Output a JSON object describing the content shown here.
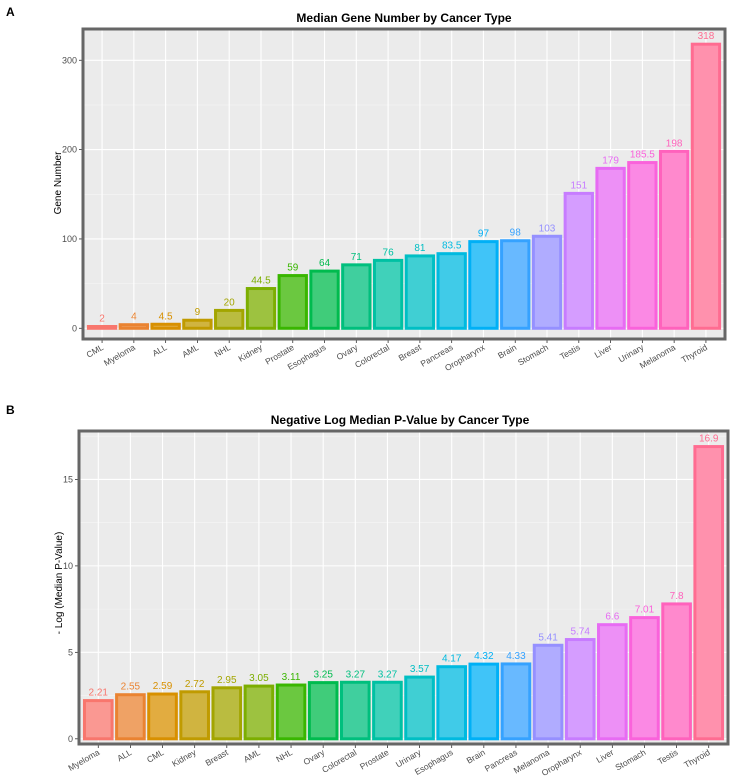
{
  "chart_data": [
    {
      "panel_label": "A",
      "type": "bar",
      "title": "Median Gene Number by Cancer Type",
      "xlabel": "",
      "ylabel": "Gene Number",
      "ylim": [
        -12,
        335
      ],
      "yticks": [
        0,
        100,
        200,
        300
      ],
      "grid": true,
      "legend": "none",
      "categories": [
        "CML",
        "Myeloma",
        "ALL",
        "AML",
        "NHL",
        "Kidney",
        "Prostate",
        "Esophagus",
        "Ovary",
        "Colorectal",
        "Breast",
        "Pancreas",
        "Oropharynx",
        "Brain",
        "Stomach",
        "Testis",
        "Liver",
        "Urinary",
        "Melanoma",
        "Thyroid"
      ],
      "values": [
        2,
        4,
        4.5,
        9,
        20,
        44.5,
        59,
        64,
        71,
        76,
        81,
        83.5,
        97,
        98,
        103,
        151,
        179,
        185.5,
        198,
        318
      ],
      "value_labels": [
        "2",
        "4",
        "4.5",
        "9",
        "20",
        "44.5",
        "59",
        "64",
        "71",
        "76",
        "81",
        "83.5",
        "97",
        "98",
        "103",
        "151",
        "179",
        "185.5",
        "198",
        "318"
      ],
      "colors": [
        "#F8766D",
        "#EA8331",
        "#D89000",
        "#C09B00",
        "#A3A500",
        "#7CAE00",
        "#39B600",
        "#00BB4E",
        "#00BF7D",
        "#00C1A3",
        "#00BFC4",
        "#00BAE0",
        "#00B0F6",
        "#35A2FF",
        "#9590FF",
        "#C77CFF",
        "#E76BF3",
        "#FA62DB",
        "#FF62BC",
        "#FF6C91"
      ]
    },
    {
      "panel_label": "B",
      "type": "bar",
      "title": "Negative Log Median P-Value by Cancer Type",
      "xlabel": "",
      "ylabel": "- Log (Median P-Value)",
      "ylim": [
        -0.3,
        17.8
      ],
      "yticks": [
        0,
        5,
        10,
        15
      ],
      "grid": true,
      "legend": "none",
      "categories": [
        "Myeloma",
        "ALL",
        "CML",
        "Kidney",
        "Breast",
        "AML",
        "NHL",
        "Ovary",
        "Colorectal",
        "Prostate",
        "Urinary",
        "Esophagus",
        "Brain",
        "Pancreas",
        "Melanoma",
        "Oropharynx",
        "Liver",
        "Stomach",
        "Testis",
        "Thyroid"
      ],
      "values": [
        2.21,
        2.55,
        2.59,
        2.72,
        2.95,
        3.05,
        3.11,
        3.25,
        3.27,
        3.27,
        3.57,
        4.17,
        4.32,
        4.33,
        5.41,
        5.74,
        6.6,
        7.01,
        7.8,
        16.9
      ],
      "value_labels": [
        "2.21",
        "2.55",
        "2.59",
        "2.72",
        "2.95",
        "3.05",
        "3.11",
        "3.25",
        "3.27",
        "3.27",
        "3.57",
        "4.17",
        "4.32",
        "4.33",
        "5.41",
        "5.74",
        "6.6",
        "7.01",
        "7.8",
        "16.9"
      ],
      "colors": [
        "#F8766D",
        "#EA8331",
        "#D89000",
        "#C09B00",
        "#A3A500",
        "#7CAE00",
        "#39B600",
        "#00BB4E",
        "#00BF7D",
        "#00C1A3",
        "#00BFC4",
        "#00BAE0",
        "#00B0F6",
        "#35A2FF",
        "#9590FF",
        "#C77CFF",
        "#E76BF3",
        "#FA62DB",
        "#FF62BC",
        "#FF6C91"
      ]
    }
  ]
}
